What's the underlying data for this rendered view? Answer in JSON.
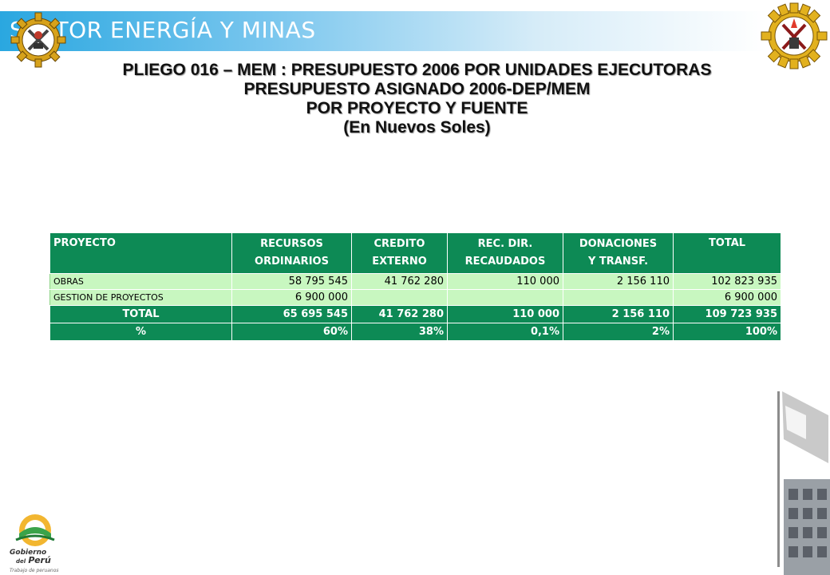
{
  "header": {
    "banner_text": "SECTOR ENERGÍA Y MINAS"
  },
  "title": {
    "line1": "PLIEGO 016 – MEM : PRESUPUESTO 2006 POR UNIDADES EJECUTORAS",
    "line2": "PRESUPUESTO ASIGNADO 2006-DEP/MEM",
    "line3": "POR PROYECTO Y FUENTE",
    "line4": "(En Nuevos Soles)"
  },
  "table": {
    "columns": [
      {
        "line1": "PROYECTO",
        "line2": ""
      },
      {
        "line1": "RECURSOS",
        "line2": "ORDINARIOS"
      },
      {
        "line1": "CREDITO",
        "line2": "EXTERNO"
      },
      {
        "line1": "REC. DIR.",
        "line2": "RECAUDADOS"
      },
      {
        "line1": "DONACIONES",
        "line2": "Y TRANSF."
      },
      {
        "line1": "TOTAL",
        "line2": ""
      }
    ],
    "rows": [
      {
        "name": "OBRAS",
        "recursos_ordinarios": "58 795 545",
        "credito_externo": "41 762 280",
        "rec_dir_recaudados": "110 000",
        "donaciones_transf": "2 156 110",
        "total": "102 823 935"
      },
      {
        "name": "GESTION DE PROYECTOS",
        "recursos_ordinarios": "6 900 000",
        "credito_externo": "",
        "rec_dir_recaudados": "",
        "donaciones_transf": "",
        "total": "6 900 000"
      }
    ],
    "total_row": {
      "name": "TOTAL",
      "recursos_ordinarios": "65 695 545",
      "credito_externo": "41 762 280",
      "rec_dir_recaudados": "110 000",
      "donaciones_transf": "2 156 110",
      "total": "109 723 935"
    },
    "percent_row": {
      "name": "%",
      "recursos_ordinarios": "60%",
      "credito_externo": "38%",
      "rec_dir_recaudados": "0,1%",
      "donaciones_transf": "2%",
      "total": "100%"
    }
  },
  "footer": {
    "logo_text_line1": "Gobierno",
    "logo_text_line2": "del",
    "logo_text_line3": "Perú",
    "tagline": "Trabajo de peruanos"
  },
  "colors": {
    "table_header": "#0d8a55",
    "table_data": "#c8f7c0",
    "banner": "#2aa7e0"
  }
}
